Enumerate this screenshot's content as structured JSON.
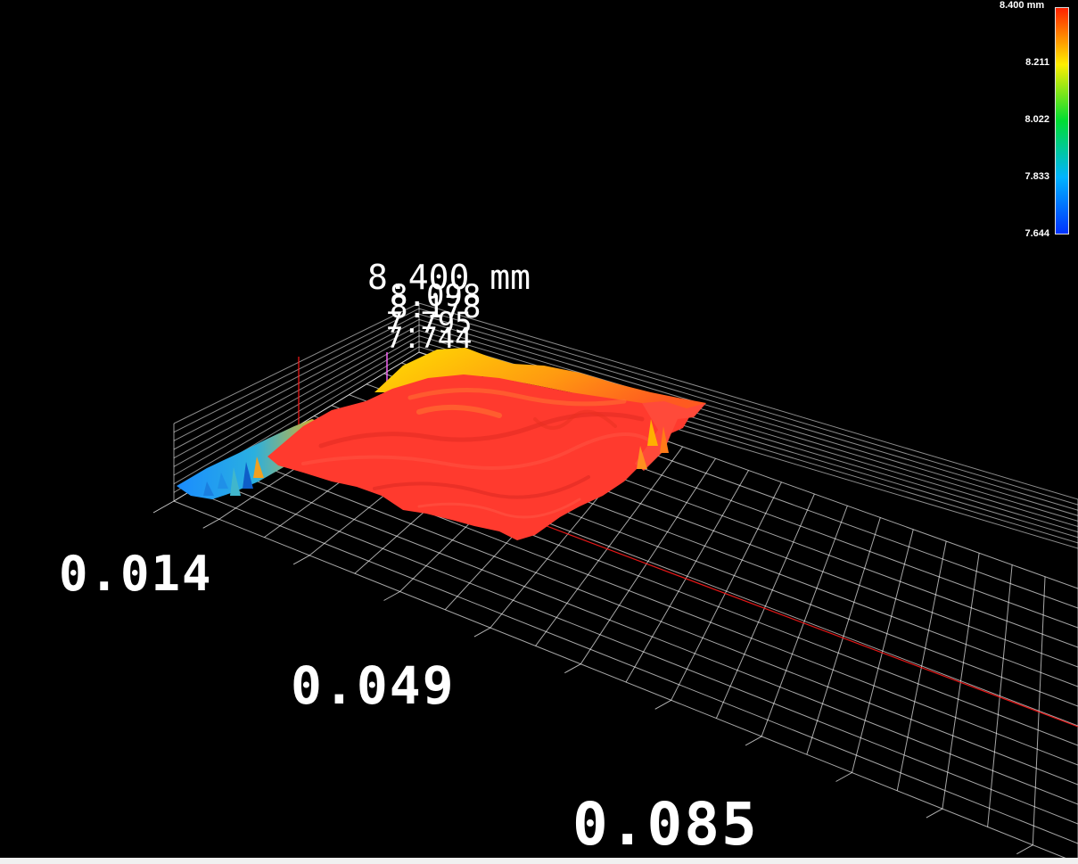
{
  "colors": {
    "background": "#000000",
    "grid": "#ffffff",
    "scale_low": "#0033ff",
    "scale_mid": "#00dd33",
    "scale_high": "#ff2200",
    "axis_line": "#ff1a1a"
  },
  "chart_data": {
    "type": "surface3d",
    "title": "",
    "z_unit": "mm",
    "z_range": [
      7.644,
      8.4
    ],
    "x_tick_labels": [
      "0.014",
      "0.049",
      "0.085"
    ],
    "z_tick_labels": [
      "8.400 mm",
      "8.098",
      "8.178",
      "7.795",
      "7.744"
    ],
    "colorbar": {
      "title": "8.400 mm",
      "ticks": [
        "8.211",
        "8.022",
        "7.833",
        "7.644"
      ],
      "tick_values": [
        8.211,
        8.022,
        7.833,
        7.644
      ],
      "min": 7.644,
      "max": 8.4
    },
    "grid": true,
    "surface_dominant_value": 8.37
  }
}
